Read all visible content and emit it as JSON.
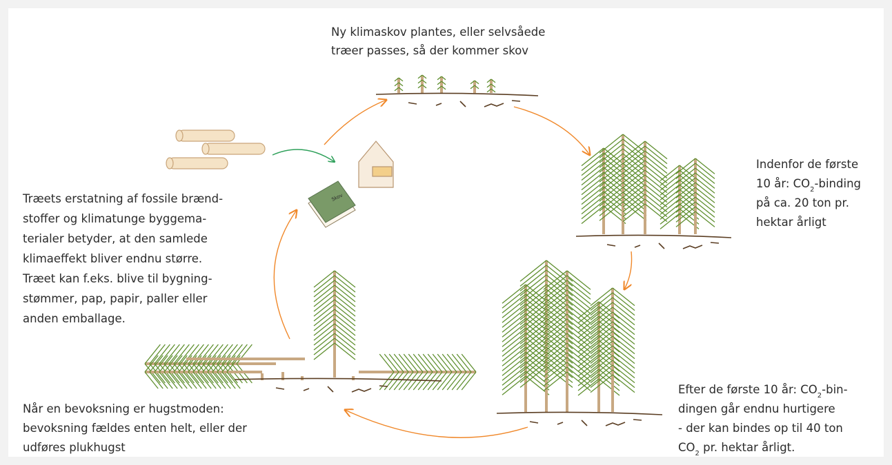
{
  "labels": {
    "new_forest": [
      [
        "Ny klimaskov plantes, eller selvsåede"
      ],
      [
        "træer passes, så der kommer skov"
      ]
    ],
    "first_years": [
      [
        "Indenfor de første"
      ],
      [
        "10 år: CO",
        "2",
        "-binding"
      ],
      [
        "på ca. 20 ton pr."
      ],
      [
        "hektar årligt"
      ]
    ],
    "substitution": [
      [
        "Træets erstatning af fossile brænd-"
      ],
      [
        "stoffer og klimatunge byggema-"
      ],
      [
        "terialer betyder, at den samlede"
      ],
      [
        "klimaeffekt bliver endnu større."
      ],
      [
        "Træet kan f.eks. blive til bygning-"
      ],
      [
        "stømmer, pap, papir, paller eller"
      ],
      [
        "anden emballage."
      ]
    ],
    "harvest": [
      [
        "Når en bevoksning er hugstmoden:"
      ],
      [
        "bevoksning fældes enten helt, eller der"
      ],
      [
        "udføres plukhugst"
      ]
    ],
    "after_years": [
      [
        "Efter de første 10 år: CO",
        "2",
        "-bin-"
      ],
      [
        "dingen går endnu hurtigere"
      ],
      [
        "- der kan bindes op til 40 ton"
      ],
      [
        "CO",
        "2",
        " pr. hektar årligt."
      ]
    ]
  },
  "book_label": "Skov"
}
